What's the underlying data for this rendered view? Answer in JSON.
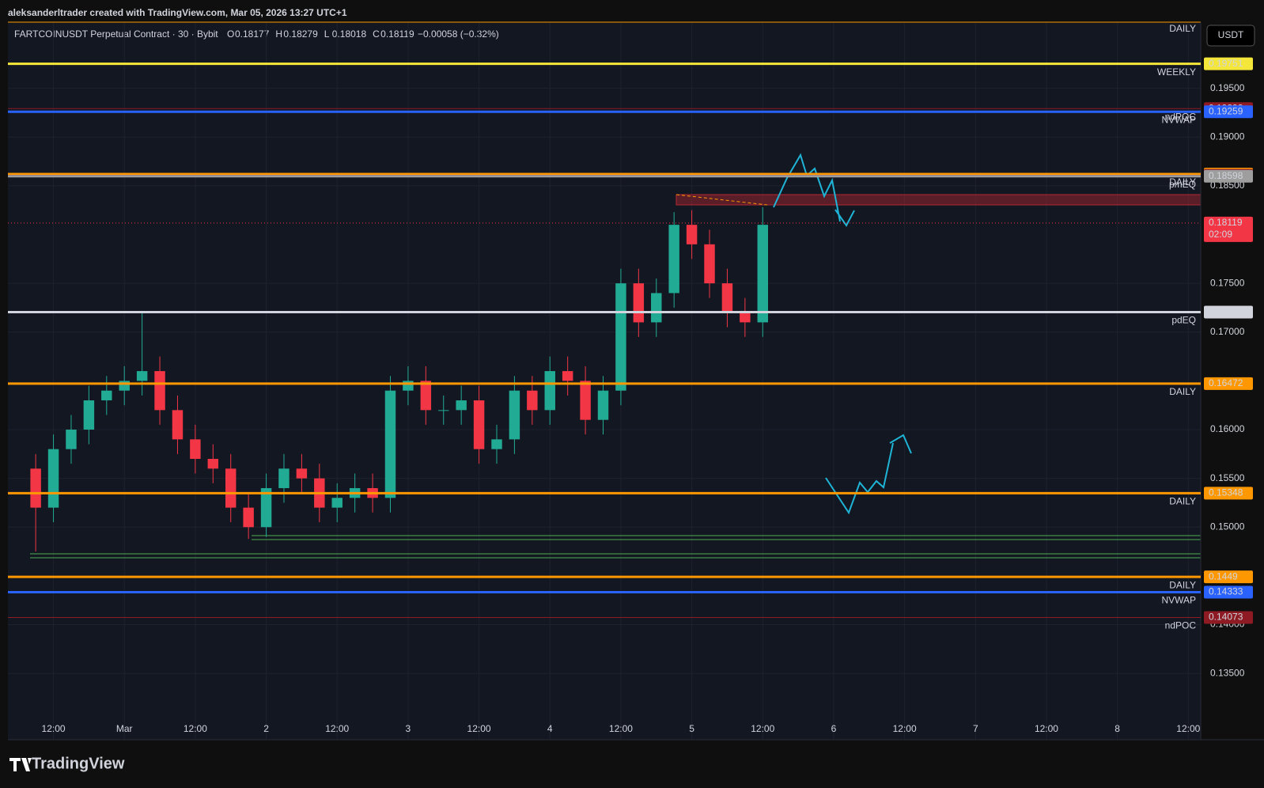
{
  "header": {
    "credit": "aleksanderltrader created with TradingView.com, Mar 05, 2026 13:27 UTC+1",
    "symbol": "FARTCOINUSDT Perpetual Contract · 30 · Bybit",
    "ohlc": [
      {
        "key": "O",
        "value": "0.18177"
      },
      {
        "key": "H",
        "value": "0.18279"
      },
      {
        "key": "L",
        "value": "0.18018"
      },
      {
        "key": "C",
        "value": "0.18119"
      }
    ],
    "change": "−0.00058 (−0.32%)",
    "currency": "USDT"
  },
  "footer": {
    "brand": "TradingView"
  },
  "chart_data": {
    "type": "candlestick",
    "x": [
      -15,
      -12,
      -9,
      -6,
      -3,
      0,
      3,
      6,
      9,
      12,
      15,
      18,
      21,
      24,
      27,
      30,
      33,
      36,
      39,
      42,
      45,
      48,
      51,
      54,
      57,
      60,
      63,
      66,
      69,
      72,
      75,
      78,
      81,
      84,
      87,
      90,
      93,
      96,
      99,
      102,
      105,
      108
    ],
    "open": [
      0.156,
      0.152,
      0.158,
      0.16,
      0.163,
      0.164,
      0.165,
      0.166,
      0.162,
      0.159,
      0.157,
      0.156,
      0.152,
      0.15,
      0.154,
      0.156,
      0.155,
      0.152,
      0.153,
      0.154,
      0.153,
      0.164,
      0.165,
      0.162,
      0.162,
      0.163,
      0.158,
      0.159,
      0.164,
      0.162,
      0.166,
      0.165,
      0.161,
      0.164,
      0.175,
      0.171,
      0.174,
      0.181,
      0.179,
      0.175,
      0.172,
      0.171
    ],
    "high": [
      0.1575,
      0.1595,
      0.1615,
      0.1645,
      0.1655,
      0.1665,
      0.172,
      0.1675,
      0.1635,
      0.1605,
      0.1585,
      0.1575,
      0.1535,
      0.1555,
      0.1575,
      0.1575,
      0.1565,
      0.1545,
      0.1555,
      0.1555,
      0.1655,
      0.1665,
      0.1665,
      0.1635,
      0.1645,
      0.1645,
      0.1605,
      0.1655,
      0.1655,
      0.1675,
      0.1675,
      0.1665,
      0.1655,
      0.1765,
      0.1765,
      0.1755,
      0.1823,
      0.1825,
      0.1805,
      0.1765,
      0.1735,
      0.1828
    ],
    "low": [
      0.1475,
      0.1505,
      0.1565,
      0.1585,
      0.1615,
      0.1625,
      0.1635,
      0.1605,
      0.1575,
      0.1555,
      0.1545,
      0.1505,
      0.1488,
      0.149,
      0.1525,
      0.1535,
      0.1505,
      0.1505,
      0.1515,
      0.1515,
      0.1515,
      0.1625,
      0.1605,
      0.1605,
      0.1605,
      0.1565,
      0.1565,
      0.1575,
      0.1605,
      0.1605,
      0.1635,
      0.1595,
      0.1595,
      0.1625,
      0.1695,
      0.1695,
      0.1725,
      0.1775,
      0.1735,
      0.1705,
      0.1695,
      0.1695
    ],
    "close": [
      0.152,
      0.158,
      0.16,
      0.163,
      0.164,
      0.165,
      0.166,
      0.162,
      0.159,
      0.157,
      0.156,
      0.152,
      0.15,
      0.154,
      0.156,
      0.155,
      0.152,
      0.153,
      0.154,
      0.153,
      0.164,
      0.165,
      0.162,
      0.162,
      0.163,
      0.158,
      0.159,
      0.164,
      0.162,
      0.166,
      0.165,
      0.161,
      0.164,
      0.175,
      0.171,
      0.174,
      0.181,
      0.179,
      0.175,
      0.172,
      0.171,
      0.181
    ],
    "up_color": "#22ab94",
    "down_color": "#f23645",
    "xlim": [
      -19.7,
      182.1
    ],
    "xticks": [
      {
        "value": -12,
        "label": "12:00"
      },
      {
        "value": 0,
        "label": "Mar"
      },
      {
        "value": 12,
        "label": "12:00"
      },
      {
        "value": 24,
        "label": "2"
      },
      {
        "value": 36,
        "label": "12:00"
      },
      {
        "value": 48,
        "label": "3"
      },
      {
        "value": 60,
        "label": "12:00"
      },
      {
        "value": 72,
        "label": "4"
      },
      {
        "value": 84,
        "label": "12:00"
      },
      {
        "value": 96,
        "label": "5"
      },
      {
        "value": 108,
        "label": "12:00"
      },
      {
        "value": 120,
        "label": "6"
      },
      {
        "value": 132,
        "label": "12:00"
      },
      {
        "value": 144,
        "label": "7"
      },
      {
        "value": 156,
        "label": "12:00"
      },
      {
        "value": 168,
        "label": "8"
      },
      {
        "value": 180,
        "label": "12:00"
      }
    ],
    "ylim": [
      0.1282,
      0.2017
    ],
    "yticks": [
      {
        "value": 0.195,
        "label": "0.19500"
      },
      {
        "value": 0.19,
        "label": "0.19000"
      },
      {
        "value": 0.185,
        "label": "0.18500"
      },
      {
        "value": 0.175,
        "label": "0.17500"
      },
      {
        "value": 0.17,
        "label": "0.17000"
      },
      {
        "value": 0.16,
        "label": "0.16000"
      },
      {
        "value": 0.155,
        "label": "0.15500"
      },
      {
        "value": 0.15,
        "label": "0.15000"
      },
      {
        "value": 0.14,
        "label": "0.14000"
      },
      {
        "value": 0.135,
        "label": "0.13500"
      }
    ],
    "grid": true,
    "levels": [
      {
        "value": 0.19751,
        "color": "#f5e63a",
        "text_color": "#000",
        "tag": "WEEKLY"
      },
      {
        "value": 0.19292,
        "color": "#8e1b23",
        "text_color": "#fff",
        "tag": "ndPOC"
      },
      {
        "value": 0.19259,
        "color": "#2962ff",
        "text_color": "#fff",
        "tag": "NVWAP"
      },
      {
        "value": 0.18621,
        "color": "#ff9800",
        "text_color": "#000",
        "tag": "DAILY"
      },
      {
        "value": 0.18608,
        "color": "#8e1b23",
        "text_color": "#fff"
      },
      {
        "value": 0.18598,
        "color": "#9e9e9e",
        "text_color": "#000",
        "tag": "pmEQ"
      },
      {
        "value": 0.17205,
        "color": "#d1d4dc",
        "text_color": "#000",
        "tag": "pdEQ"
      },
      {
        "value": 0.16472,
        "color": "#ff9800",
        "text_color": "#000",
        "tag": "DAILY"
      },
      {
        "value": 0.15348,
        "color": "#ff9800",
        "text_color": "#000",
        "tag": "DAILY"
      },
      {
        "value": 0.1449,
        "color": "#ff9800",
        "text_color": "#000",
        "tag": "DAILY"
      },
      {
        "value": 0.14333,
        "color": "#2962ff",
        "text_color": "#fff",
        "tag": "NVWAP"
      },
      {
        "value": 0.14073,
        "color": "#8e1b23",
        "text_color": "#fff",
        "tag": "ndPOC"
      }
    ],
    "last_price": {
      "value": 0.18119,
      "countdown": "02:09",
      "color": "#f23645"
    },
    "top_tag": "DAILY"
  }
}
